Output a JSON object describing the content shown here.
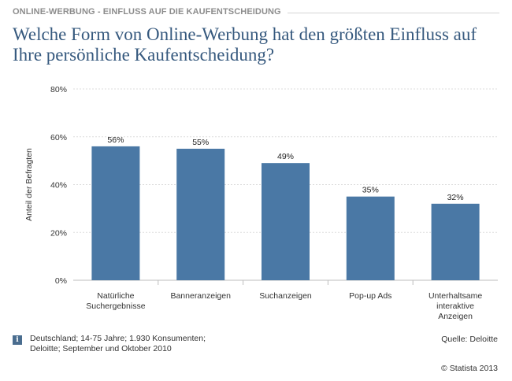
{
  "header": {
    "label": "ONLINE-WERBUNG - EINFLUSS AUF DIE KAUFENTSCHEIDUNG"
  },
  "title": "Welche Form von Online-Werbung hat den größten Einfluss auf Ihre persönliche Kaufentscheidung?",
  "chart_data": {
    "type": "bar",
    "categories": [
      [
        "Natürliche",
        "Suchergebnisse"
      ],
      [
        "Banneranzeigen"
      ],
      [
        "Suchanzeigen"
      ],
      [
        "Pop-up Ads"
      ],
      [
        "Unterhaltsame",
        "interaktive",
        "Anzeigen"
      ]
    ],
    "values": [
      56,
      55,
      49,
      35,
      32
    ],
    "value_labels": [
      "56%",
      "55%",
      "49%",
      "35%",
      "32%"
    ],
    "ylabel": "Anteil der Befragten",
    "ylim": [
      0,
      80
    ],
    "yticks": [
      0,
      20,
      40,
      60,
      80
    ],
    "ytick_labels": [
      "0%",
      "20%",
      "40%",
      "60%",
      "80%"
    ],
    "grid": true,
    "bar_color": "#4a78a5"
  },
  "footer": {
    "info_icon": "i",
    "info_lines": [
      "Deutschland; 14-75 Jahre; 1.930 Konsumenten;",
      "Deloitte; September und Oktober 2010"
    ],
    "source": "Quelle: Deloitte",
    "copyright": "© Statista 2013"
  }
}
